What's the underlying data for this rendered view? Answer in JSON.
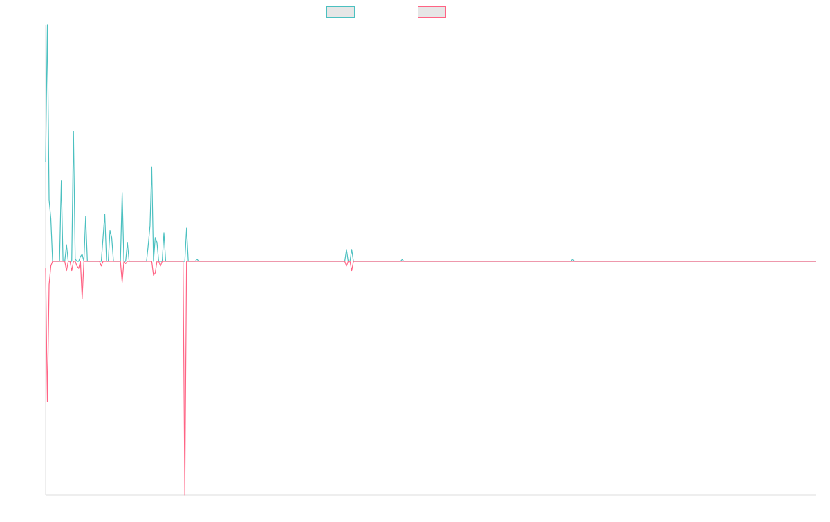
{
  "colors": {
    "series_up": "#4bc0c0",
    "series_down": "#ff6384",
    "legend_fill": "#e6e6e6",
    "axis": "#dddddd",
    "background": "#ffffff"
  },
  "chart_data": {
    "type": "line",
    "title": "",
    "xlabel": "",
    "ylabel": "",
    "legend": {
      "placement": "top-center",
      "entries": [
        {
          "name": ""
        },
        {
          "name": ""
        }
      ]
    },
    "grid": false,
    "x_range": [
      0,
      443
    ],
    "ylim": [
      -100,
      100
    ],
    "series": [
      {
        "name": "",
        "color": "#4bc0c0",
        "points": [
          [
            0,
            42
          ],
          [
            1,
            100
          ],
          [
            2,
            26
          ],
          [
            3,
            18
          ],
          [
            4,
            0
          ],
          [
            5,
            0
          ],
          [
            6,
            0
          ],
          [
            7,
            0
          ],
          [
            8,
            0
          ],
          [
            9,
            34
          ],
          [
            10,
            0
          ],
          [
            11,
            0
          ],
          [
            12,
            7
          ],
          [
            13,
            0
          ],
          [
            14,
            0
          ],
          [
            15,
            0
          ],
          [
            16,
            55
          ],
          [
            17,
            1
          ],
          [
            18,
            0
          ],
          [
            19,
            0
          ],
          [
            20,
            2
          ],
          [
            21,
            3
          ],
          [
            22,
            0
          ],
          [
            23,
            19
          ],
          [
            24,
            0
          ],
          [
            25,
            0
          ],
          [
            26,
            0
          ],
          [
            27,
            0
          ],
          [
            28,
            0
          ],
          [
            29,
            0
          ],
          [
            30,
            0
          ],
          [
            31,
            0
          ],
          [
            32,
            0
          ],
          [
            33,
            10
          ],
          [
            34,
            20
          ],
          [
            35,
            0
          ],
          [
            36,
            0
          ],
          [
            37,
            13
          ],
          [
            38,
            10
          ],
          [
            39,
            0
          ],
          [
            40,
            0
          ],
          [
            41,
            0
          ],
          [
            42,
            0
          ],
          [
            43,
            0
          ],
          [
            44,
            29
          ],
          [
            45,
            0
          ],
          [
            46,
            0
          ],
          [
            47,
            8
          ],
          [
            48,
            0
          ],
          [
            49,
            0
          ],
          [
            50,
            0
          ],
          [
            51,
            0
          ],
          [
            52,
            0
          ],
          [
            53,
            0
          ],
          [
            54,
            0
          ],
          [
            55,
            0
          ],
          [
            56,
            0
          ],
          [
            57,
            0
          ],
          [
            58,
            0
          ],
          [
            59,
            7
          ],
          [
            60,
            15
          ],
          [
            61,
            40
          ],
          [
            62,
            0
          ],
          [
            63,
            10
          ],
          [
            64,
            8
          ],
          [
            65,
            0
          ],
          [
            66,
            0
          ],
          [
            67,
            0
          ],
          [
            68,
            12
          ],
          [
            69,
            0
          ],
          [
            70,
            0
          ],
          [
            80,
            0
          ],
          [
            81,
            14
          ],
          [
            82,
            0
          ],
          [
            86,
            0
          ],
          [
            87,
            1
          ],
          [
            88,
            0
          ],
          [
            100,
            0
          ],
          [
            437,
            0
          ],
          [
            443,
            0
          ],
          [
            172,
            0
          ],
          [
            173,
            5
          ],
          [
            174,
            0
          ],
          [
            175,
            0
          ],
          [
            176,
            5
          ],
          [
            177,
            0
          ],
          [
            204,
            0
          ],
          [
            205,
            0.8
          ],
          [
            206,
            0
          ],
          [
            302,
            0
          ],
          [
            303,
            1
          ],
          [
            304,
            0
          ]
        ]
      },
      {
        "name": "",
        "color": "#ff6384",
        "points": [
          [
            0,
            -3
          ],
          [
            1,
            -60
          ],
          [
            2,
            -10
          ],
          [
            3,
            -2
          ],
          [
            4,
            0
          ],
          [
            5,
            0
          ],
          [
            6,
            0
          ],
          [
            7,
            0
          ],
          [
            8,
            0
          ],
          [
            9,
            0
          ],
          [
            10,
            0
          ],
          [
            11,
            0
          ],
          [
            12,
            -4
          ],
          [
            13,
            0
          ],
          [
            14,
            0
          ],
          [
            15,
            -4
          ],
          [
            16,
            0
          ],
          [
            17,
            0
          ],
          [
            18,
            -2
          ],
          [
            19,
            -3
          ],
          [
            20,
            0
          ],
          [
            21,
            -16
          ],
          [
            22,
            0
          ],
          [
            23,
            0
          ],
          [
            31,
            0
          ],
          [
            32,
            -2
          ],
          [
            33,
            0
          ],
          [
            34,
            0
          ],
          [
            35,
            0
          ],
          [
            43,
            0
          ],
          [
            44,
            -9
          ],
          [
            45,
            0
          ],
          [
            46,
            -1
          ],
          [
            47,
            0
          ],
          [
            60,
            0
          ],
          [
            61,
            0
          ],
          [
            62,
            -6
          ],
          [
            63,
            -5
          ],
          [
            64,
            0
          ],
          [
            65,
            0
          ],
          [
            66,
            -2
          ],
          [
            67,
            0
          ],
          [
            79,
            0
          ],
          [
            80,
            -100
          ],
          [
            81,
            0
          ],
          [
            172,
            0
          ],
          [
            173,
            -2
          ],
          [
            174,
            0
          ],
          [
            175,
            0
          ],
          [
            176,
            -4
          ],
          [
            177,
            0
          ],
          [
            437,
            0
          ],
          [
            443,
            0
          ]
        ]
      }
    ]
  }
}
